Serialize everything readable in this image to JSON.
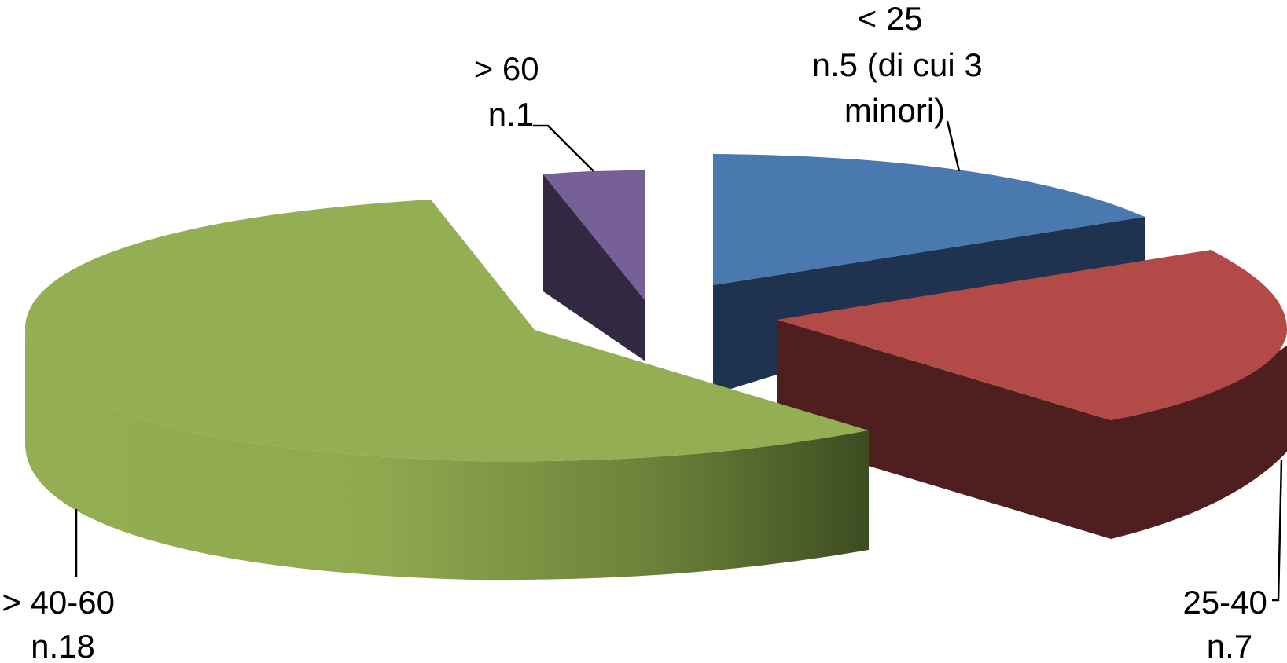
{
  "chart_data": {
    "type": "pie",
    "style": "3d-exploded",
    "legend": "none",
    "slices": [
      {
        "category": "< 25",
        "value": 5,
        "label_lines": [
          "< 25",
          "n.5 (di cui 3",
          "minori)"
        ],
        "color_top": "#4a79b0",
        "color_side": "#1f3250"
      },
      {
        "category": "25-40",
        "value": 7,
        "label_lines": [
          "25-40",
          "n.7"
        ],
        "color_top": "#b24b48",
        "color_side": "#4f1f20"
      },
      {
        "category": "> 40-60",
        "value": 18,
        "label_lines": [
          "> 40-60",
          "n.18"
        ],
        "color_top": "#93ae53",
        "color_side": "#5d7632"
      },
      {
        "category": "> 60",
        "value": 1,
        "label_lines": [
          "> 60",
          "n.1"
        ],
        "color_top": "#775f98",
        "color_side": "#332841"
      }
    ]
  }
}
